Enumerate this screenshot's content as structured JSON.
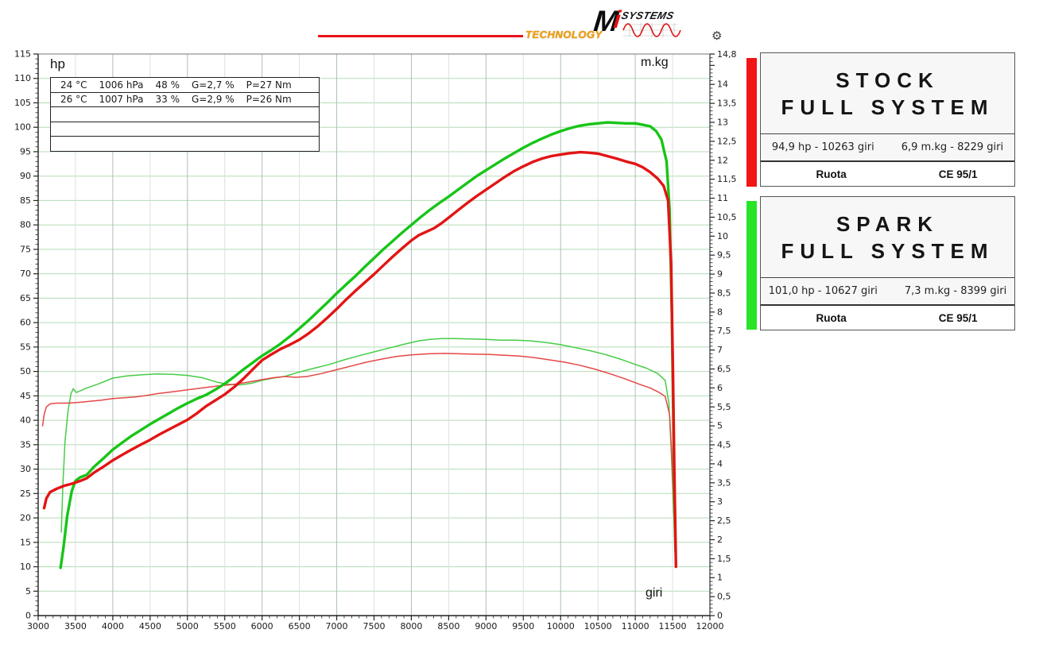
{
  "logo": {
    "technology": "TECHNOLOGY",
    "brand_m": "M",
    "brand_i": "i",
    "brand_systems": "SYSTEMS",
    "accent_color": "#e8131b",
    "technology_color": "#f4a207"
  },
  "cards": [
    {
      "accent_color": "#f31414",
      "title_line1": "STOCK",
      "title_line2": "FULL SYSTEM",
      "stat_hp": "94,9 hp - 10263 giri",
      "stat_torque": "6,9 m.kg - 8229 giri",
      "footer_left": "Ruota",
      "footer_right": "CE 95/1"
    },
    {
      "accent_color": "#27e427",
      "title_line1": "SPARK",
      "title_line2": "FULL SYSTEM",
      "stat_hp": "101,0 hp - 10627 giri",
      "stat_torque": "7,3 m.kg - 8399 giri",
      "footer_left": "Ruota",
      "footer_right": "CE 95/1"
    }
  ],
  "chart_data": {
    "type": "line",
    "title": "",
    "xlabel": "giri",
    "ylabel_left": "hp",
    "ylabel_right": "m.kg",
    "x_axis": {
      "min": 3000,
      "max": 12000,
      "major": 500,
      "minor": 100
    },
    "y_left": {
      "min": 0,
      "max": 115,
      "major": 5,
      "minor": 1
    },
    "y_right": {
      "min": 0,
      "max": 14.8,
      "major": 0.5,
      "minor": 0.1,
      "top_label": 14.8
    },
    "grid": {
      "h_color": "#b5dbb5",
      "v_color_500": "#d9e2df",
      "v_color_1000": "#aebfba"
    },
    "env_rows": [
      [
        "24 °C",
        "1006 hPa",
        "48 %",
        "G=2,7 %",
        "P=27 Nm"
      ],
      [
        "26 °C",
        "1007 hPa",
        "33 %",
        "G=2,9 %",
        "P=26 Nm"
      ],
      [],
      [],
      []
    ],
    "series": [
      {
        "name": "spark-torque",
        "legend": "SPARK FULL SYSTEM torque",
        "axis": "right",
        "color": "#46cc46",
        "width": 1.5,
        "points": [
          [
            3310,
            2.2
          ],
          [
            3330,
            3.4
          ],
          [
            3360,
            4.6
          ],
          [
            3400,
            5.4
          ],
          [
            3440,
            5.85
          ],
          [
            3470,
            5.98
          ],
          [
            3510,
            5.88
          ],
          [
            3560,
            5.92
          ],
          [
            3650,
            6.0
          ],
          [
            3800,
            6.1
          ],
          [
            4000,
            6.26
          ],
          [
            4200,
            6.32
          ],
          [
            4400,
            6.35
          ],
          [
            4600,
            6.37
          ],
          [
            4800,
            6.36
          ],
          [
            5000,
            6.33
          ],
          [
            5200,
            6.27
          ],
          [
            5400,
            6.15
          ],
          [
            5550,
            6.1
          ],
          [
            5700,
            6.08
          ],
          [
            5850,
            6.12
          ],
          [
            6000,
            6.2
          ],
          [
            6150,
            6.26
          ],
          [
            6300,
            6.3
          ],
          [
            6500,
            6.42
          ],
          [
            6700,
            6.52
          ],
          [
            6900,
            6.62
          ],
          [
            7100,
            6.74
          ],
          [
            7300,
            6.85
          ],
          [
            7500,
            6.95
          ],
          [
            7700,
            7.05
          ],
          [
            7900,
            7.15
          ],
          [
            8100,
            7.24
          ],
          [
            8250,
            7.28
          ],
          [
            8399,
            7.3
          ],
          [
            8600,
            7.3
          ],
          [
            8800,
            7.29
          ],
          [
            9000,
            7.28
          ],
          [
            9200,
            7.26
          ],
          [
            9400,
            7.26
          ],
          [
            9600,
            7.24
          ],
          [
            9800,
            7.2
          ],
          [
            10000,
            7.14
          ],
          [
            10200,
            7.06
          ],
          [
            10400,
            6.98
          ],
          [
            10600,
            6.88
          ],
          [
            10800,
            6.76
          ],
          [
            11000,
            6.62
          ],
          [
            11150,
            6.52
          ],
          [
            11300,
            6.38
          ],
          [
            11400,
            6.2
          ],
          [
            11450,
            5.6
          ],
          [
            11480,
            4.4
          ],
          [
            11505,
            3.2
          ],
          [
            11525,
            2.3
          ]
        ]
      },
      {
        "name": "stock-torque",
        "legend": "STOCK FULL SYSTEM torque",
        "axis": "right",
        "color": "#e64747",
        "width": 1.5,
        "points": [
          [
            3060,
            5.0
          ],
          [
            3080,
            5.3
          ],
          [
            3110,
            5.5
          ],
          [
            3160,
            5.58
          ],
          [
            3250,
            5.6
          ],
          [
            3400,
            5.6
          ],
          [
            3550,
            5.62
          ],
          [
            3700,
            5.65
          ],
          [
            3850,
            5.68
          ],
          [
            4000,
            5.72
          ],
          [
            4150,
            5.74
          ],
          [
            4300,
            5.76
          ],
          [
            4450,
            5.8
          ],
          [
            4600,
            5.85
          ],
          [
            4800,
            5.9
          ],
          [
            5000,
            5.95
          ],
          [
            5200,
            6.0
          ],
          [
            5400,
            6.05
          ],
          [
            5600,
            6.09
          ],
          [
            5800,
            6.15
          ],
          [
            6000,
            6.22
          ],
          [
            6150,
            6.27
          ],
          [
            6300,
            6.3
          ],
          [
            6450,
            6.28
          ],
          [
            6600,
            6.3
          ],
          [
            6800,
            6.38
          ],
          [
            7000,
            6.48
          ],
          [
            7200,
            6.58
          ],
          [
            7400,
            6.68
          ],
          [
            7600,
            6.76
          ],
          [
            7800,
            6.83
          ],
          [
            8000,
            6.87
          ],
          [
            8229,
            6.9
          ],
          [
            8450,
            6.91
          ],
          [
            8650,
            6.9
          ],
          [
            8850,
            6.89
          ],
          [
            9050,
            6.88
          ],
          [
            9250,
            6.86
          ],
          [
            9450,
            6.84
          ],
          [
            9650,
            6.8
          ],
          [
            9850,
            6.74
          ],
          [
            10050,
            6.68
          ],
          [
            10250,
            6.6
          ],
          [
            10450,
            6.5
          ],
          [
            10650,
            6.38
          ],
          [
            10850,
            6.25
          ],
          [
            11050,
            6.1
          ],
          [
            11200,
            6.0
          ],
          [
            11320,
            5.88
          ],
          [
            11400,
            5.78
          ],
          [
            11460,
            5.3
          ],
          [
            11490,
            4.2
          ],
          [
            11515,
            2.8
          ],
          [
            11540,
            1.5
          ]
        ]
      },
      {
        "name": "spark-hp",
        "legend": "SPARK FULL SYSTEM hp",
        "axis": "left",
        "color": "#17c517",
        "width": 3.4,
        "points": [
          [
            3300,
            9.8
          ],
          [
            3340,
            14
          ],
          [
            3390,
            20.5
          ],
          [
            3450,
            25.5
          ],
          [
            3500,
            27.6
          ],
          [
            3560,
            28.3
          ],
          [
            3650,
            28.8
          ],
          [
            3750,
            30.5
          ],
          [
            3875,
            32.2
          ],
          [
            4000,
            34
          ],
          [
            4125,
            35.4
          ],
          [
            4250,
            36.8
          ],
          [
            4375,
            38
          ],
          [
            4500,
            39.2
          ],
          [
            4625,
            40.3
          ],
          [
            4750,
            41.4
          ],
          [
            4875,
            42.5
          ],
          [
            5000,
            43.5
          ],
          [
            5125,
            44.4
          ],
          [
            5250,
            45.2
          ],
          [
            5375,
            46.3
          ],
          [
            5500,
            47.5
          ],
          [
            5625,
            48.9
          ],
          [
            5750,
            50.4
          ],
          [
            5875,
            51.8
          ],
          [
            6000,
            53.2
          ],
          [
            6125,
            54.4
          ],
          [
            6250,
            55.7
          ],
          [
            6375,
            57.2
          ],
          [
            6500,
            58.8
          ],
          [
            6625,
            60.5
          ],
          [
            6750,
            62.3
          ],
          [
            6875,
            64.1
          ],
          [
            7000,
            66
          ],
          [
            7125,
            67.8
          ],
          [
            7250,
            69.5
          ],
          [
            7375,
            71.4
          ],
          [
            7500,
            73.2
          ],
          [
            7625,
            75
          ],
          [
            7750,
            76.7
          ],
          [
            7875,
            78.4
          ],
          [
            8000,
            80
          ],
          [
            8125,
            81.6
          ],
          [
            8250,
            83.1
          ],
          [
            8375,
            84.5
          ],
          [
            8500,
            85.8
          ],
          [
            8625,
            87.2
          ],
          [
            8750,
            88.6
          ],
          [
            8875,
            90
          ],
          [
            9000,
            91.2
          ],
          [
            9125,
            92.4
          ],
          [
            9250,
            93.6
          ],
          [
            9375,
            94.7
          ],
          [
            9500,
            95.8
          ],
          [
            9625,
            96.8
          ],
          [
            9750,
            97.7
          ],
          [
            9875,
            98.5
          ],
          [
            10000,
            99.2
          ],
          [
            10125,
            99.8
          ],
          [
            10250,
            100.3
          ],
          [
            10375,
            100.6
          ],
          [
            10500,
            100.8
          ],
          [
            10627,
            101
          ],
          [
            10750,
            100.9
          ],
          [
            10875,
            100.8
          ],
          [
            11000,
            100.8
          ],
          [
            11100,
            100.5
          ],
          [
            11200,
            100.2
          ],
          [
            11280,
            99.2
          ],
          [
            11350,
            97.5
          ],
          [
            11420,
            93
          ],
          [
            11460,
            83
          ],
          [
            11490,
            62
          ],
          [
            11510,
            40
          ],
          [
            11525,
            22
          ],
          [
            11540,
            13
          ]
        ]
      },
      {
        "name": "stock-hp",
        "legend": "STOCK FULL SYSTEM hp",
        "axis": "left",
        "color": "#e31414",
        "width": 3.4,
        "points": [
          [
            3080,
            22
          ],
          [
            3110,
            24
          ],
          [
            3160,
            25.3
          ],
          [
            3250,
            26
          ],
          [
            3350,
            26.6
          ],
          [
            3450,
            27
          ],
          [
            3550,
            27.5
          ],
          [
            3650,
            28.1
          ],
          [
            3750,
            29.3
          ],
          [
            3875,
            30.5
          ],
          [
            4000,
            31.8
          ],
          [
            4125,
            32.9
          ],
          [
            4250,
            34
          ],
          [
            4375,
            35
          ],
          [
            4500,
            36
          ],
          [
            4625,
            37.1
          ],
          [
            4750,
            38.1
          ],
          [
            4875,
            39.1
          ],
          [
            5000,
            40.1
          ],
          [
            5125,
            41.4
          ],
          [
            5250,
            42.9
          ],
          [
            5375,
            44.1
          ],
          [
            5500,
            45.3
          ],
          [
            5625,
            46.8
          ],
          [
            5750,
            48.5
          ],
          [
            5875,
            50.4
          ],
          [
            6000,
            52.3
          ],
          [
            6125,
            53.5
          ],
          [
            6250,
            54.6
          ],
          [
            6375,
            55.5
          ],
          [
            6500,
            56.5
          ],
          [
            6625,
            57.8
          ],
          [
            6750,
            59.3
          ],
          [
            6875,
            61
          ],
          [
            7000,
            62.8
          ],
          [
            7125,
            64.7
          ],
          [
            7250,
            66.5
          ],
          [
            7375,
            68.2
          ],
          [
            7500,
            69.9
          ],
          [
            7625,
            71.7
          ],
          [
            7750,
            73.5
          ],
          [
            7875,
            75.2
          ],
          [
            8000,
            76.8
          ],
          [
            8100,
            77.9
          ],
          [
            8200,
            78.6
          ],
          [
            8300,
            79.3
          ],
          [
            8400,
            80.3
          ],
          [
            8500,
            81.5
          ],
          [
            8625,
            83
          ],
          [
            8750,
            84.5
          ],
          [
            8875,
            85.9
          ],
          [
            9000,
            87.2
          ],
          [
            9125,
            88.5
          ],
          [
            9250,
            89.8
          ],
          [
            9375,
            91
          ],
          [
            9500,
            92
          ],
          [
            9625,
            92.9
          ],
          [
            9750,
            93.6
          ],
          [
            9875,
            94.1
          ],
          [
            10000,
            94.4
          ],
          [
            10125,
            94.7
          ],
          [
            10263,
            94.9
          ],
          [
            10375,
            94.8
          ],
          [
            10500,
            94.6
          ],
          [
            10625,
            94.1
          ],
          [
            10750,
            93.6
          ],
          [
            10875,
            93
          ],
          [
            11000,
            92.5
          ],
          [
            11100,
            91.8
          ],
          [
            11200,
            90.8
          ],
          [
            11300,
            89.5
          ],
          [
            11380,
            88
          ],
          [
            11440,
            85
          ],
          [
            11480,
            72
          ],
          [
            11505,
            50
          ],
          [
            11525,
            28
          ],
          [
            11545,
            10
          ]
        ]
      }
    ]
  }
}
